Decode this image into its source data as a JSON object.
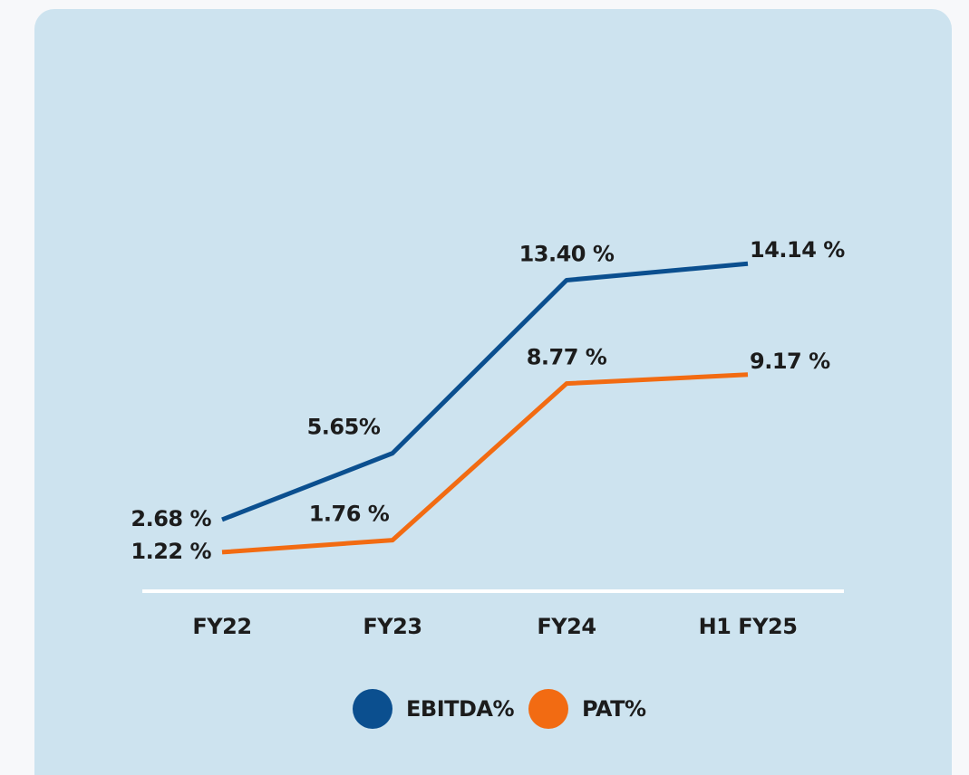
{
  "chart_data": {
    "type": "line",
    "categories": [
      "FY22",
      "FY23",
      "FY24",
      "H1 FY25"
    ],
    "series": [
      {
        "name": "EBITDA%",
        "color": "#0b4f8f",
        "values": [
          2.68,
          5.65,
          13.4,
          14.14
        ],
        "value_labels": [
          "2.68 %",
          "5.65%",
          "13.40 %",
          "14.14 %"
        ]
      },
      {
        "name": "PAT%",
        "color": "#f26b12",
        "values": [
          1.22,
          1.76,
          8.77,
          9.17
        ],
        "value_labels": [
          "1.22 %",
          "1.76 %",
          "8.77 %",
          "9.17 %"
        ]
      }
    ],
    "ylim": [
      0,
      15
    ],
    "legend": "bottom"
  }
}
